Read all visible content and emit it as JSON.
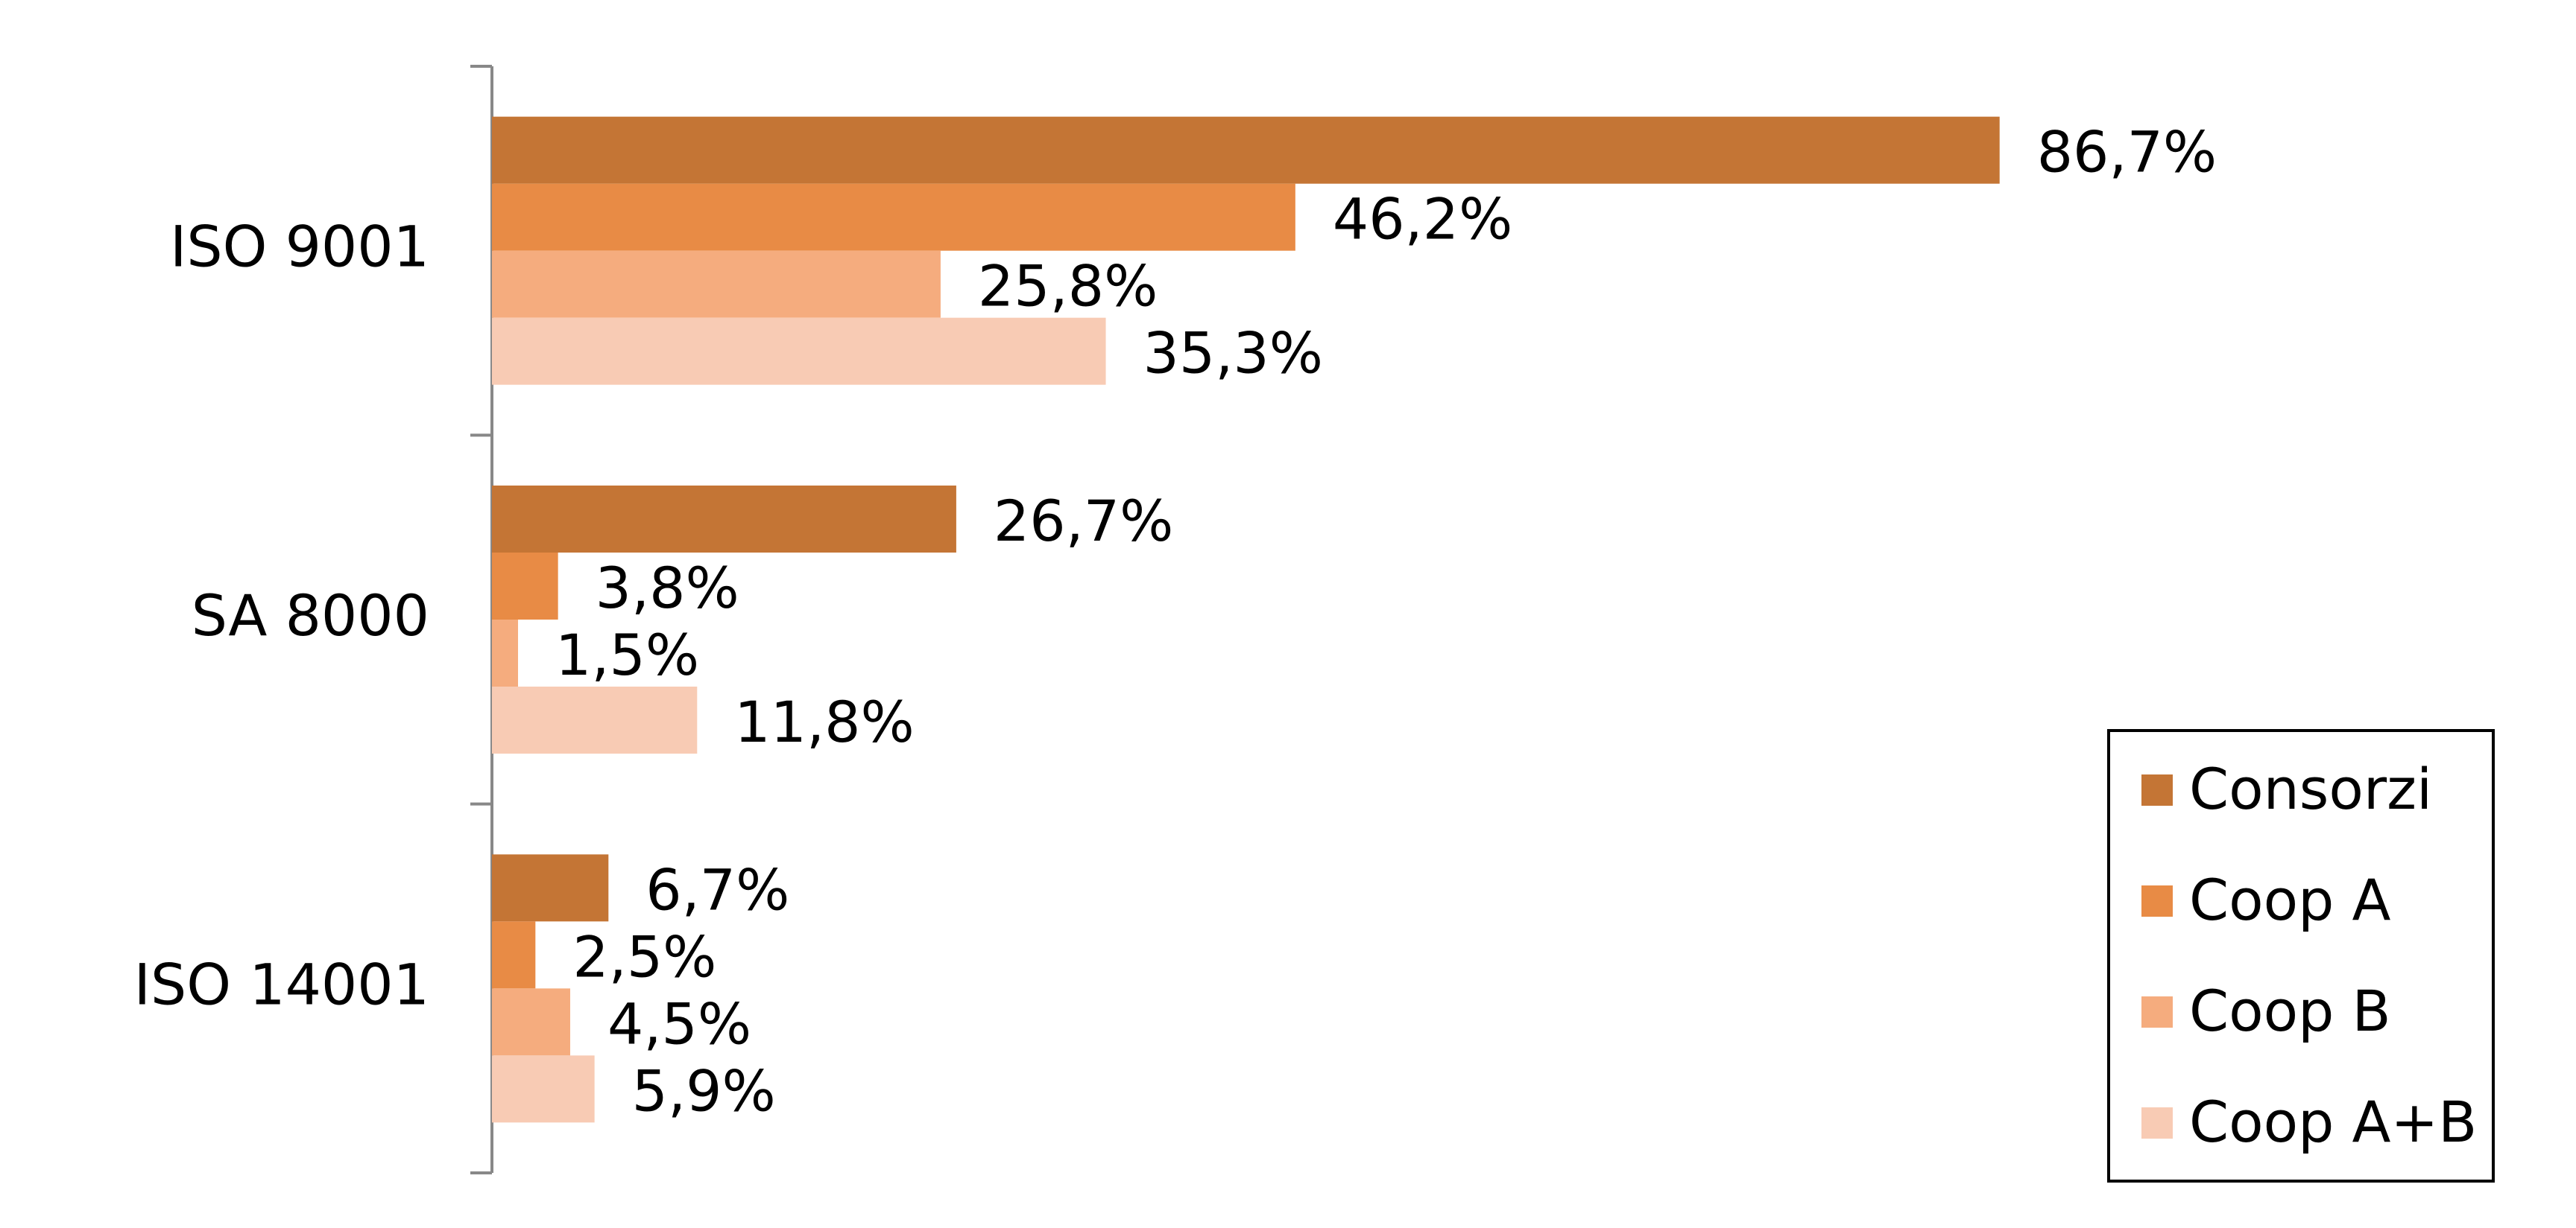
{
  "chart_data": {
    "type": "hbar",
    "categories": [
      "ISO 9001",
      "SA 8000",
      "ISO 14001"
    ],
    "series": [
      {
        "name": "Consorzi",
        "color": "#c47535",
        "values": [
          86.7,
          26.7,
          6.7
        ],
        "value_labels": [
          "86,7%",
          "26,7%",
          "6,7%"
        ]
      },
      {
        "name": "Coop A",
        "color": "#e88b45",
        "values": [
          46.2,
          3.8,
          2.5
        ],
        "value_labels": [
          "46,2%",
          "3,8%",
          "2,5%"
        ]
      },
      {
        "name": "Coop B",
        "color": "#f5ac7e",
        "values": [
          25.8,
          1.5,
          4.5
        ],
        "value_labels": [
          "25,8%",
          "1,5%",
          "4,5%"
        ]
      },
      {
        "name": "Coop A+B",
        "color": "#f8cbb4",
        "values": [
          35.3,
          11.8,
          5.9
        ],
        "value_labels": [
          "35,3%",
          "11,8%",
          "5,9%"
        ]
      }
    ],
    "legend": "lower right"
  }
}
